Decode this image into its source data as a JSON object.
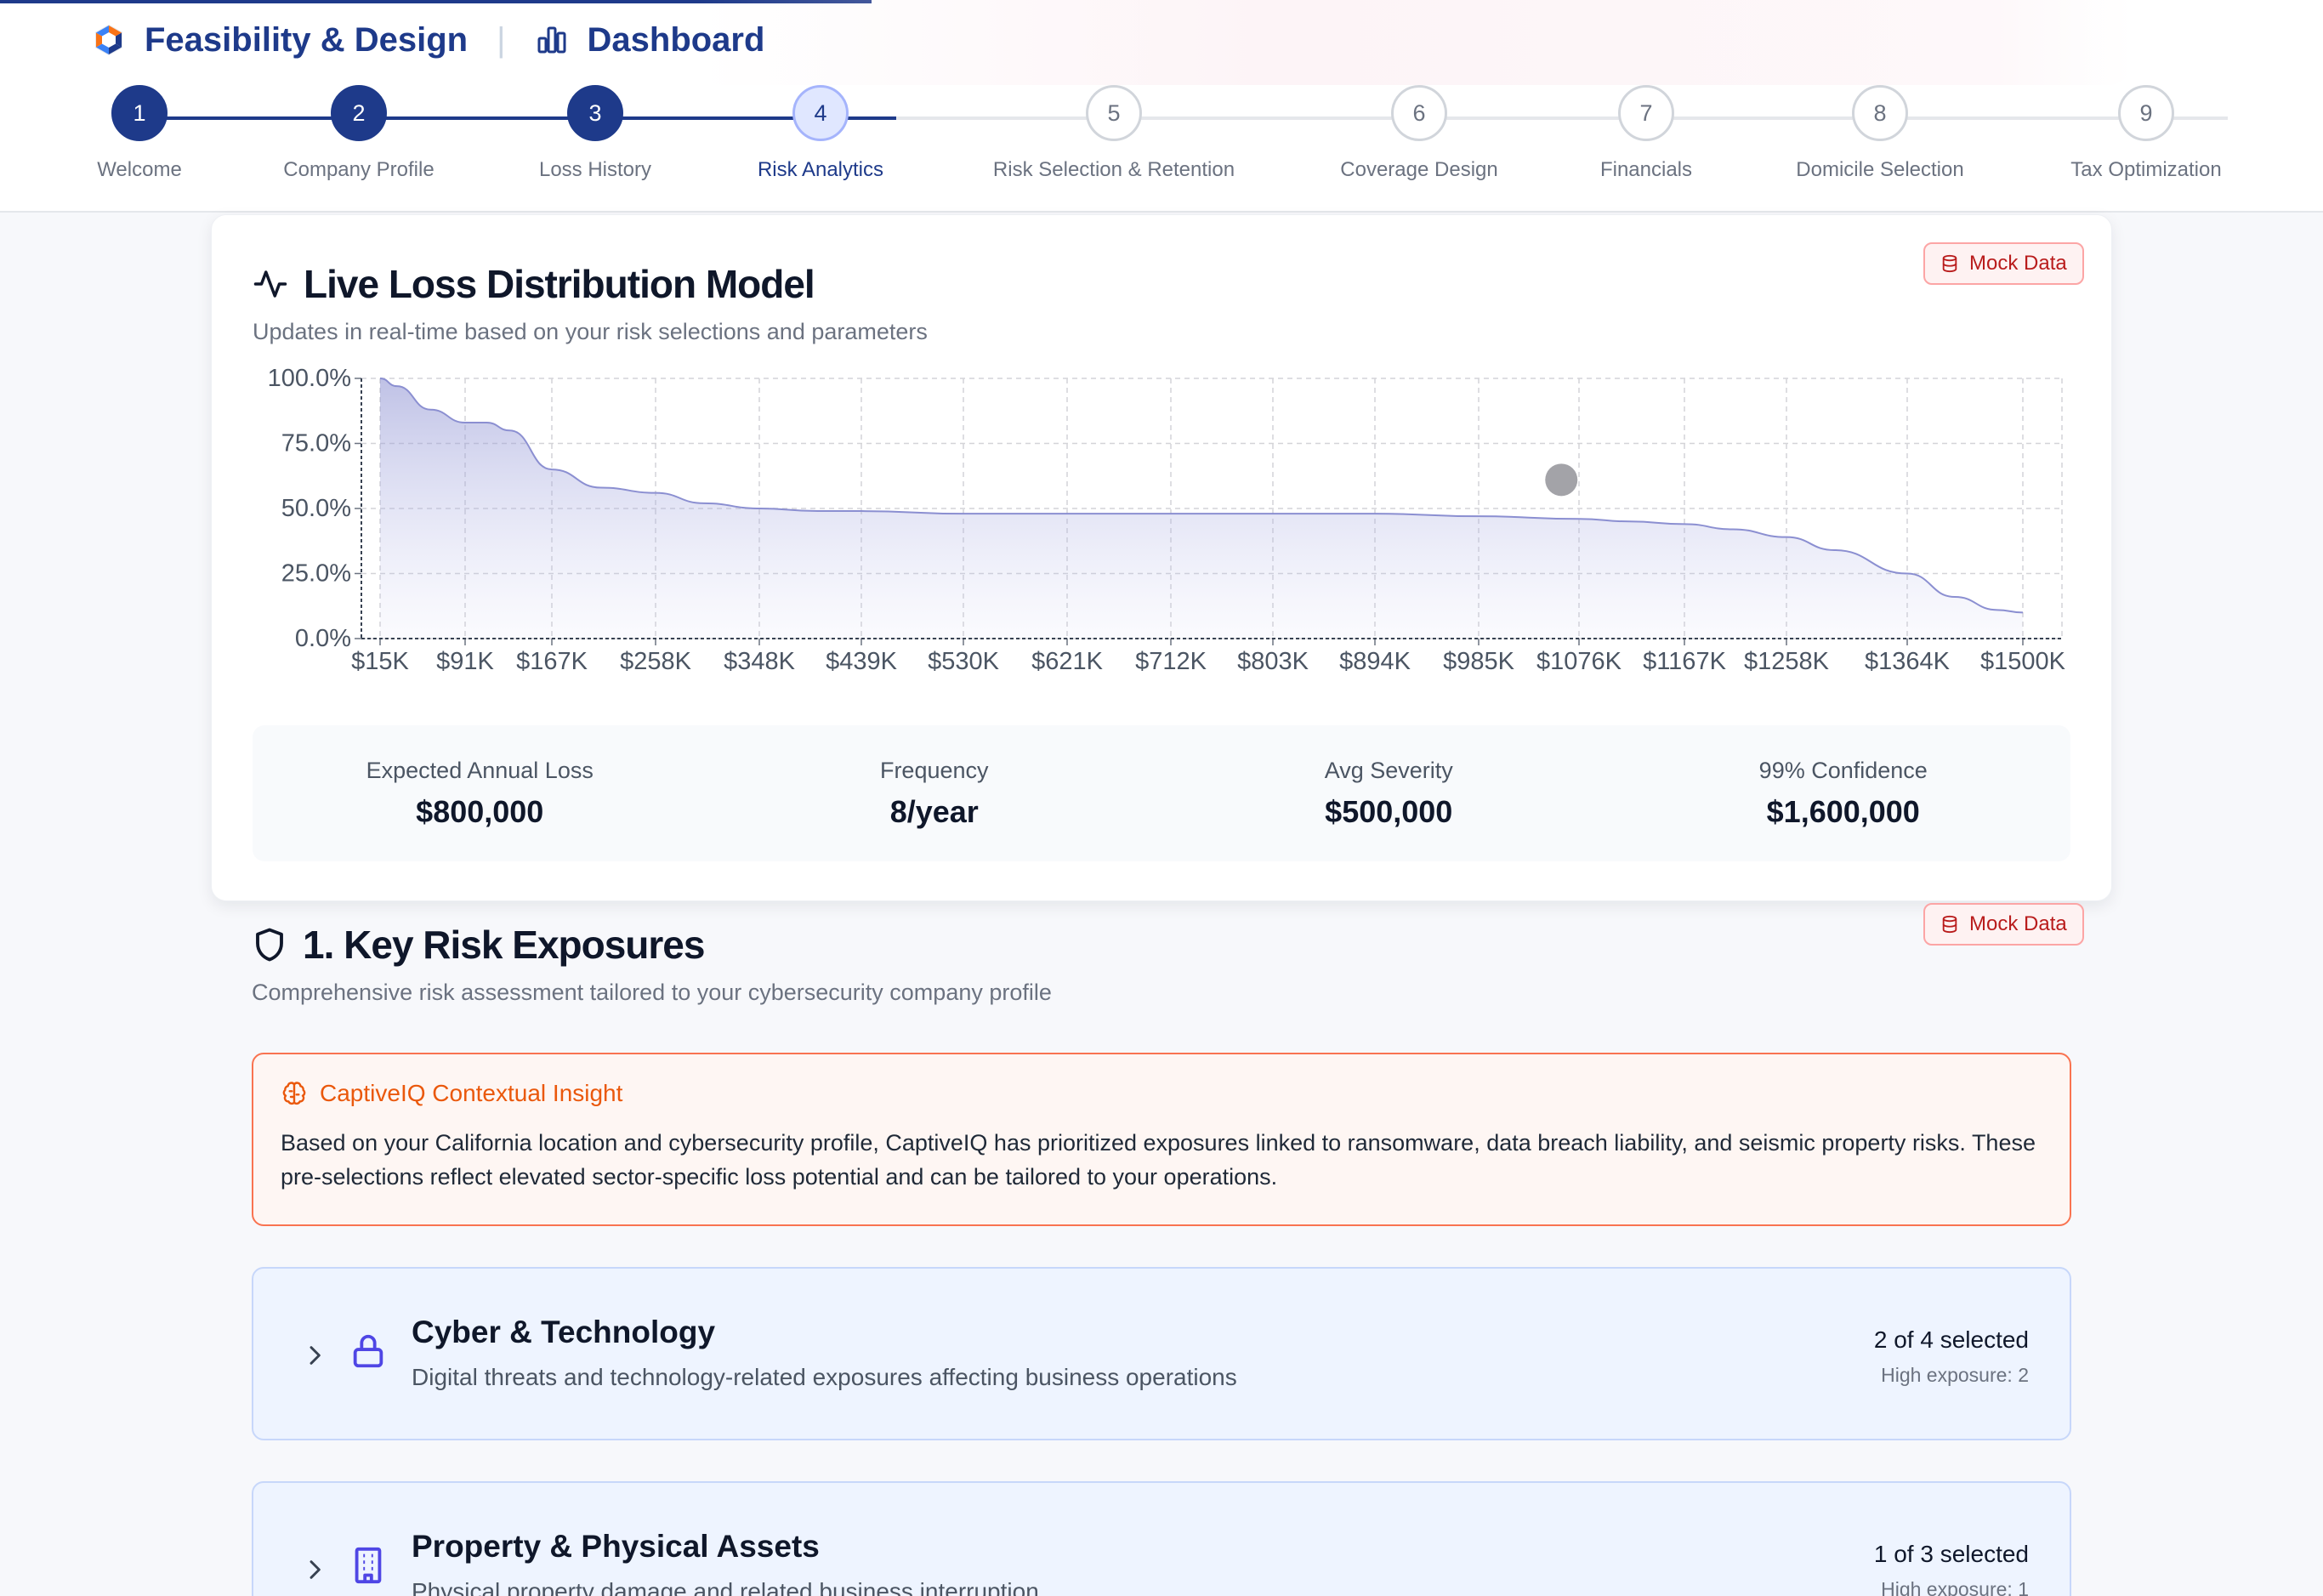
{
  "header": {
    "app_title": "Feasibility & Design",
    "separator": "|",
    "dashboard_label": "Dashboard"
  },
  "stepper": {
    "steps": [
      {
        "num": "1",
        "label": "Welcome",
        "state": "done"
      },
      {
        "num": "2",
        "label": "Company Profile",
        "state": "done"
      },
      {
        "num": "3",
        "label": "Loss History",
        "state": "done"
      },
      {
        "num": "4",
        "label": "Risk Analytics",
        "state": "active"
      },
      {
        "num": "5",
        "label": "Risk Selection & Retention",
        "state": "todo"
      },
      {
        "num": "6",
        "label": "Coverage Design",
        "state": "todo"
      },
      {
        "num": "7",
        "label": "Financials",
        "state": "todo"
      },
      {
        "num": "8",
        "label": "Domicile Selection",
        "state": "todo"
      },
      {
        "num": "9",
        "label": "Tax Optimization",
        "state": "todo"
      }
    ]
  },
  "loss_model": {
    "title": "Live Loss Distribution Model",
    "subtitle": "Updates in real-time based on your risk selections and parameters",
    "badge": "Mock Data",
    "stats": [
      {
        "label": "Expected Annual Loss",
        "value": "$800,000"
      },
      {
        "label": "Frequency",
        "value": "8/year"
      },
      {
        "label": "Avg Severity",
        "value": "$500,000"
      },
      {
        "label": "99% Confidence",
        "value": "$1,600,000"
      }
    ]
  },
  "chart_data": {
    "type": "area",
    "x_tick_labels": [
      "$15K",
      "$91K",
      "$167K",
      "$258K",
      "$348K",
      "$439K",
      "$530K",
      "$621K",
      "$712K",
      "$803K",
      "$894K",
      "$985K",
      "$1076K",
      "$1167K",
      "$1258K",
      "$1364K",
      "$1500K"
    ],
    "y_tick_labels": [
      "0.0%",
      "25.0%",
      "50.0%",
      "75.0%",
      "100.0%"
    ],
    "ylim": [
      0,
      100
    ],
    "xlim": [
      15,
      1500
    ],
    "grid": true,
    "series": [
      {
        "x": [
          15,
          30,
          60,
          91,
          110,
          130,
          167,
          210,
          258,
          300,
          348,
          400,
          439,
          530,
          621,
          712,
          803,
          894,
          985,
          1076,
          1120,
          1167,
          1210,
          1258,
          1300,
          1364,
          1420,
          1470,
          1500
        ],
        "y": [
          100,
          97,
          88,
          83,
          83,
          80,
          65,
          58,
          56,
          52,
          50,
          49,
          49,
          48,
          48,
          48,
          48,
          48,
          47,
          46,
          45,
          44,
          42,
          39,
          34,
          25,
          16,
          11,
          10
        ],
        "color": "#8b8fd1"
      }
    ],
    "marker": {
      "x": 1060,
      "y": 61,
      "color": "#a3a3a8"
    }
  },
  "exposures": {
    "title": "1. Key Risk Exposures",
    "subtitle": "Comprehensive risk assessment tailored to your cybersecurity company profile",
    "badge": "Mock Data",
    "insight_title": "CaptiveIQ Contextual Insight",
    "insight_body": "Based on your California location and cybersecurity profile, CaptiveIQ has prioritized exposures linked to ransomware, data breach liability, and seismic property risks. These pre-selections reflect elevated sector-specific loss potential and can be tailored to your operations.",
    "groups": [
      {
        "title": "Cyber & Technology",
        "desc": "Digital threats and technology-related exposures affecting business operations",
        "selected": "2 of 4 selected",
        "exposure": "High exposure: 2",
        "icon": "lock-icon"
      },
      {
        "title": "Property & Physical Assets",
        "desc": "Physical property damage and related business interruption",
        "selected": "1 of 3 selected",
        "exposure": "High exposure: 1",
        "icon": "building-icon"
      }
    ]
  },
  "colors": {
    "brand": "#1e3a8a",
    "accent_orange": "#ea580c",
    "badge_red": "#b91c1c"
  }
}
